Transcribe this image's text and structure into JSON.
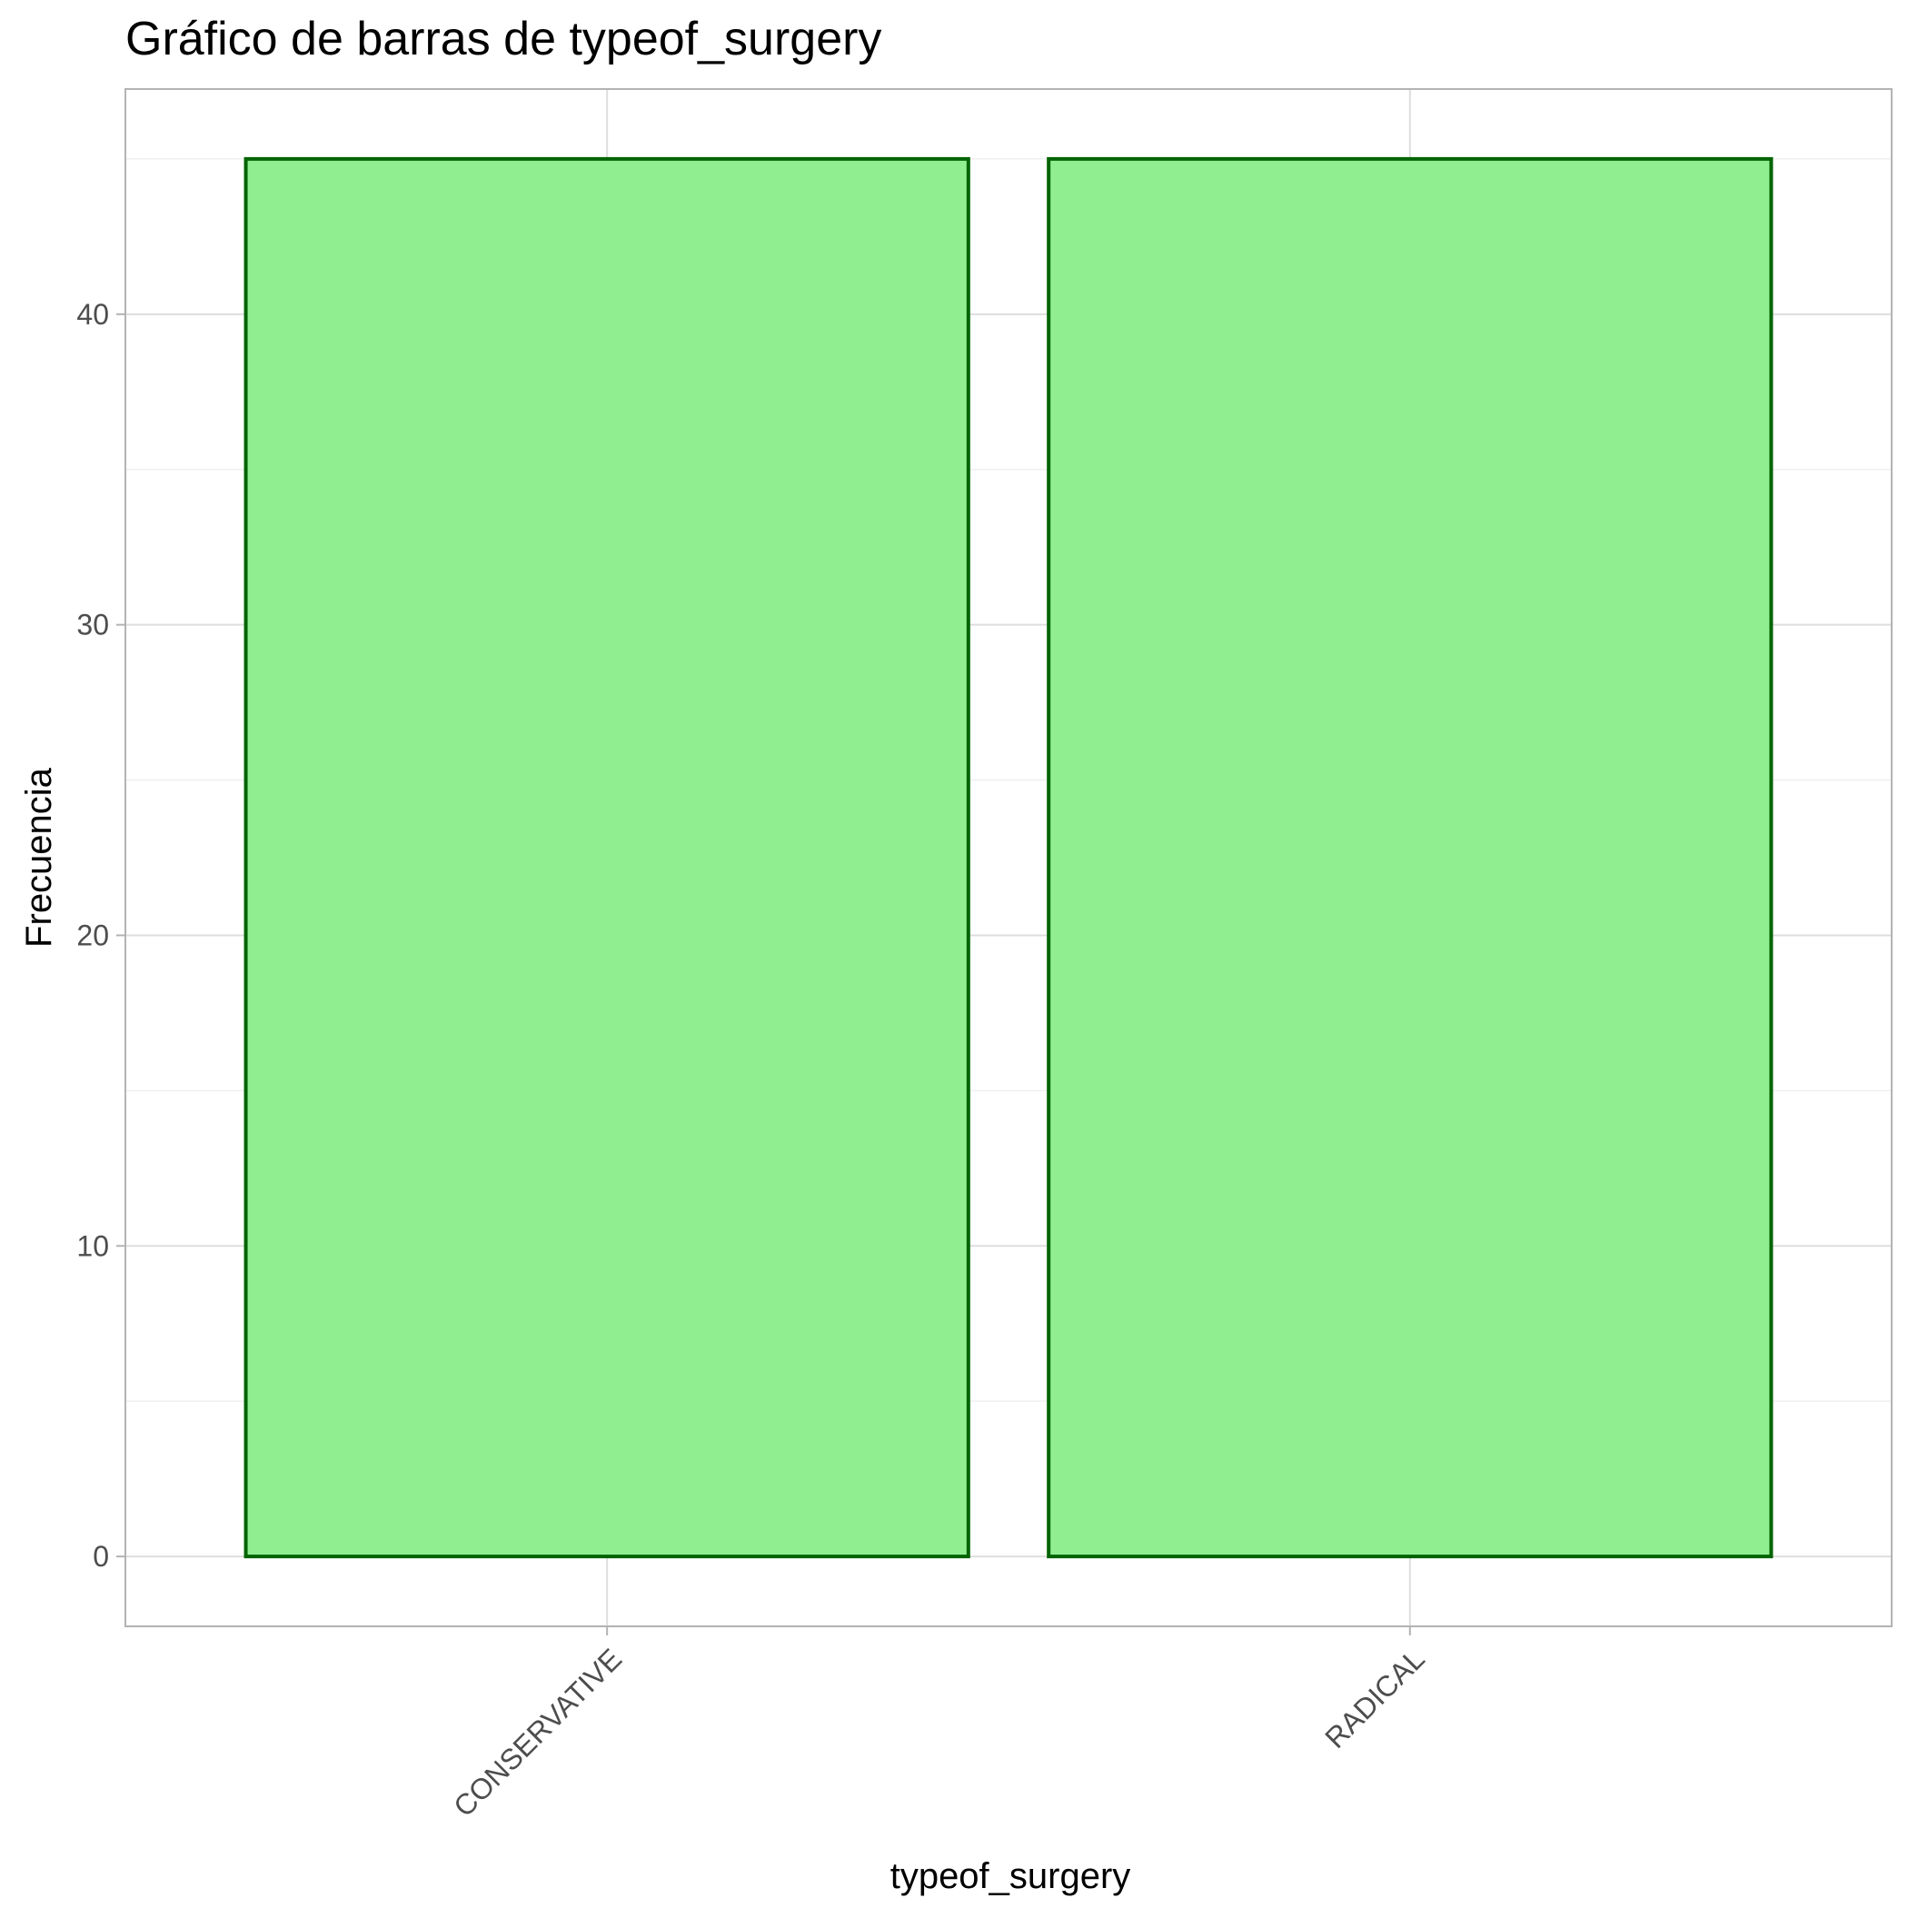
{
  "chart_data": {
    "type": "bar",
    "title": "Gráfico de barras de typeof_surgery",
    "xlabel": "typeof_surgery",
    "ylabel": "Frecuencia",
    "categories": [
      "CONSERVATIVE",
      "RADICAL"
    ],
    "values": [
      45,
      45
    ],
    "ylim": [
      -2.25,
      47.25
    ],
    "yticks": [
      0,
      10,
      20,
      30,
      40
    ],
    "ytick_labels": [
      "0",
      "10",
      "20",
      "30",
      "40"
    ],
    "grid": true,
    "legend": "none",
    "bar_fill_color": "#90EE90",
    "bar_border_color": "#006400",
    "panel_border_color": "#b3b3b3",
    "grid_major_color": "#dedede",
    "grid_minor_color": "#efefef",
    "tick_color": "#b3b3b3"
  }
}
